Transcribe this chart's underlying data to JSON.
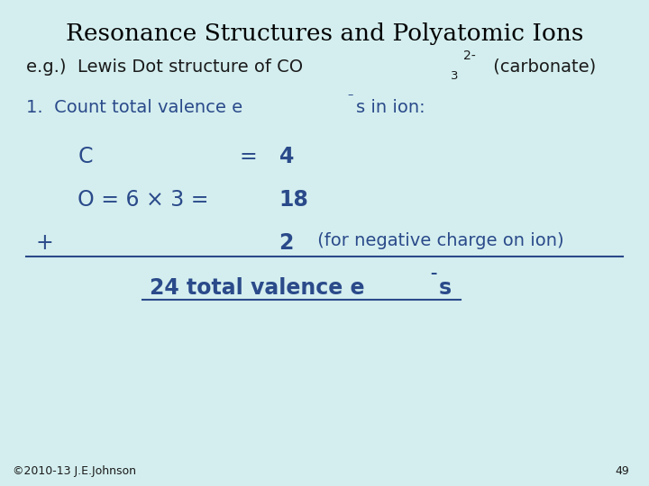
{
  "background_color": "#d4eeef",
  "title": "Resonance Structures and Polyatomic Ions",
  "title_fontsize": 19,
  "title_color": "#000000",
  "body_color": "#2a4a8a",
  "body_black": "#1a1a1a",
  "footer_text": "©2010-13 J.E.Johnson",
  "footer_number": "49",
  "footer_fontsize": 9,
  "fontsize_body": 14,
  "fontsize_large": 17
}
